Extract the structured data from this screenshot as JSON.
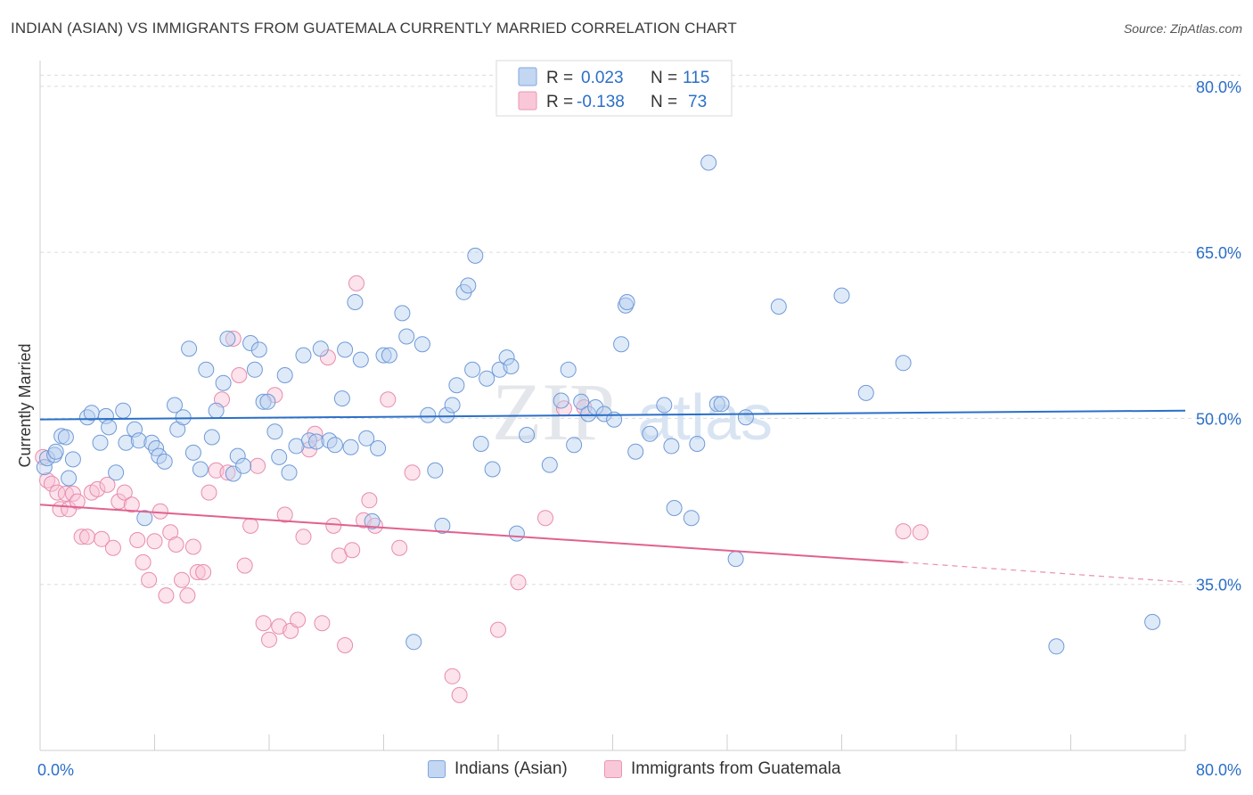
{
  "header": {
    "title": "INDIAN (ASIAN) VS IMMIGRANTS FROM GUATEMALA CURRENTLY MARRIED CORRELATION CHART",
    "source": "Source: ZipAtlas.com"
  },
  "watermark": {
    "zip": "ZIP",
    "atlas": "atlas"
  },
  "legend": {
    "r_label": "R =",
    "n_label": "N =",
    "entries": [
      {
        "r": "0.023",
        "n": "115"
      },
      {
        "r": "-0.138",
        "n": "73"
      }
    ]
  },
  "chart_data": {
    "type": "scatter",
    "title": "INDIAN (ASIAN) VS IMMIGRANTS FROM GUATEMALA CURRENTLY MARRIED CORRELATION CHART",
    "ylabel": "Currently Married",
    "xlabel": "",
    "xlim": [
      0,
      80
    ],
    "ylim": [
      20,
      82
    ],
    "x_tick_labels": [
      "0.0%",
      "80.0%"
    ],
    "y_ticks": [
      35,
      50,
      65,
      80
    ],
    "y_tick_labels": [
      "35.0%",
      "50.0%",
      "65.0%",
      "80.0%"
    ],
    "grid": "horizontal dashed",
    "colors": {
      "blue": "#5b8fd6",
      "pink": "#e87aa0",
      "blue_line": "#2b6fc7",
      "pink_line": "#e0628f"
    },
    "series": [
      {
        "name": "Indians (Asian)",
        "color": "#5b8fd6",
        "trend": {
          "x0": 0,
          "y0": 49.9,
          "x1": 80,
          "y1": 50.7
        },
        "points": [
          [
            0.3,
            45.6
          ],
          [
            0.5,
            46.4
          ],
          [
            1.0,
            46.7
          ],
          [
            1.1,
            47.0
          ],
          [
            1.5,
            48.4
          ],
          [
            1.8,
            48.3
          ],
          [
            2.0,
            44.6
          ],
          [
            2.3,
            46.3
          ],
          [
            3.3,
            50.1
          ],
          [
            3.6,
            50.5
          ],
          [
            4.2,
            47.8
          ],
          [
            4.6,
            50.2
          ],
          [
            4.8,
            49.2
          ],
          [
            5.3,
            45.1
          ],
          [
            5.8,
            50.7
          ],
          [
            6.0,
            47.8
          ],
          [
            6.6,
            49.0
          ],
          [
            6.9,
            48.0
          ],
          [
            7.3,
            41.0
          ],
          [
            7.8,
            47.8
          ],
          [
            8.1,
            47.3
          ],
          [
            8.3,
            46.6
          ],
          [
            8.7,
            46.1
          ],
          [
            9.4,
            51.2
          ],
          [
            9.6,
            49.0
          ],
          [
            10.0,
            50.1
          ],
          [
            10.4,
            56.3
          ],
          [
            10.7,
            46.9
          ],
          [
            11.2,
            45.4
          ],
          [
            11.6,
            54.4
          ],
          [
            12.0,
            48.3
          ],
          [
            12.3,
            50.7
          ],
          [
            12.8,
            53.2
          ],
          [
            13.1,
            57.2
          ],
          [
            13.5,
            45.0
          ],
          [
            13.8,
            46.6
          ],
          [
            14.2,
            45.7
          ],
          [
            14.7,
            56.8
          ],
          [
            15.0,
            54.4
          ],
          [
            15.3,
            56.2
          ],
          [
            15.6,
            51.5
          ],
          [
            15.9,
            51.5
          ],
          [
            16.4,
            48.8
          ],
          [
            16.7,
            46.5
          ],
          [
            17.1,
            53.9
          ],
          [
            17.4,
            45.1
          ],
          [
            17.9,
            47.5
          ],
          [
            18.4,
            55.7
          ],
          [
            18.8,
            48.0
          ],
          [
            19.3,
            47.9
          ],
          [
            19.6,
            56.3
          ],
          [
            20.2,
            48.0
          ],
          [
            20.6,
            47.6
          ],
          [
            21.1,
            51.8
          ],
          [
            21.3,
            56.2
          ],
          [
            21.7,
            47.4
          ],
          [
            22.0,
            60.5
          ],
          [
            22.4,
            55.3
          ],
          [
            22.8,
            48.2
          ],
          [
            23.2,
            40.7
          ],
          [
            23.6,
            47.3
          ],
          [
            24.0,
            55.7
          ],
          [
            24.4,
            55.7
          ],
          [
            25.3,
            59.5
          ],
          [
            25.6,
            57.4
          ],
          [
            26.1,
            29.8
          ],
          [
            26.7,
            56.7
          ],
          [
            27.1,
            50.3
          ],
          [
            27.6,
            45.3
          ],
          [
            28.1,
            40.3
          ],
          [
            28.4,
            50.3
          ],
          [
            28.8,
            51.2
          ],
          [
            29.1,
            53.0
          ],
          [
            29.6,
            61.4
          ],
          [
            29.9,
            62.0
          ],
          [
            30.2,
            54.4
          ],
          [
            30.4,
            64.7
          ],
          [
            30.8,
            47.7
          ],
          [
            31.2,
            53.6
          ],
          [
            31.6,
            45.4
          ],
          [
            32.1,
            54.4
          ],
          [
            32.6,
            55.5
          ],
          [
            32.9,
            54.7
          ],
          [
            33.3,
            39.6
          ],
          [
            34.0,
            48.5
          ],
          [
            35.6,
            45.8
          ],
          [
            36.4,
            51.6
          ],
          [
            36.9,
            54.4
          ],
          [
            37.3,
            47.6
          ],
          [
            37.8,
            51.5
          ],
          [
            38.3,
            50.4
          ],
          [
            38.8,
            51.0
          ],
          [
            39.4,
            50.4
          ],
          [
            40.1,
            49.9
          ],
          [
            40.6,
            56.7
          ],
          [
            40.9,
            60.2
          ],
          [
            41.0,
            60.5
          ],
          [
            41.6,
            47.0
          ],
          [
            42.6,
            48.6
          ],
          [
            43.6,
            51.2
          ],
          [
            44.1,
            47.5
          ],
          [
            44.3,
            41.9
          ],
          [
            45.5,
            41.0
          ],
          [
            45.9,
            47.7
          ],
          [
            46.7,
            73.1
          ],
          [
            47.3,
            51.3
          ],
          [
            47.6,
            51.3
          ],
          [
            48.6,
            37.3
          ],
          [
            49.3,
            50.1
          ],
          [
            51.6,
            60.1
          ],
          [
            56.0,
            61.1
          ],
          [
            57.7,
            52.3
          ],
          [
            60.3,
            55.0
          ],
          [
            71.0,
            29.4
          ],
          [
            77.7,
            31.6
          ]
        ]
      },
      {
        "name": "Immigrants from Guatemala",
        "color": "#e87aa0",
        "trend": {
          "x0": 0,
          "y0": 42.2,
          "x1": 60.3,
          "y1": 37.0
        },
        "trend_dashed_to": {
          "x": 80,
          "y": 35.2
        },
        "points": [
          [
            0.2,
            46.5
          ],
          [
            0.5,
            44.4
          ],
          [
            0.8,
            44.1
          ],
          [
            1.2,
            43.3
          ],
          [
            1.4,
            41.8
          ],
          [
            1.8,
            43.2
          ],
          [
            2.0,
            41.8
          ],
          [
            2.3,
            43.2
          ],
          [
            2.6,
            42.5
          ],
          [
            2.9,
            39.3
          ],
          [
            3.3,
            39.3
          ],
          [
            3.6,
            43.3
          ],
          [
            4.0,
            43.6
          ],
          [
            4.3,
            39.1
          ],
          [
            4.7,
            44.0
          ],
          [
            5.1,
            38.3
          ],
          [
            5.5,
            42.5
          ],
          [
            5.9,
            43.3
          ],
          [
            6.4,
            42.2
          ],
          [
            6.8,
            39.0
          ],
          [
            7.2,
            37.0
          ],
          [
            7.6,
            35.4
          ],
          [
            8.0,
            38.9
          ],
          [
            8.4,
            41.6
          ],
          [
            8.8,
            34.0
          ],
          [
            9.1,
            39.7
          ],
          [
            9.5,
            38.6
          ],
          [
            9.9,
            35.4
          ],
          [
            10.3,
            34.0
          ],
          [
            10.7,
            38.4
          ],
          [
            11.0,
            36.1
          ],
          [
            11.4,
            36.1
          ],
          [
            11.8,
            43.3
          ],
          [
            12.3,
            45.3
          ],
          [
            12.7,
            51.7
          ],
          [
            13.1,
            45.1
          ],
          [
            13.5,
            57.2
          ],
          [
            13.9,
            53.9
          ],
          [
            14.3,
            36.7
          ],
          [
            14.7,
            40.3
          ],
          [
            15.2,
            45.7
          ],
          [
            15.6,
            31.5
          ],
          [
            16.0,
            30.0
          ],
          [
            16.4,
            52.1
          ],
          [
            16.7,
            31.2
          ],
          [
            17.1,
            41.3
          ],
          [
            17.5,
            30.8
          ],
          [
            18.0,
            31.8
          ],
          [
            18.4,
            39.3
          ],
          [
            18.8,
            47.2
          ],
          [
            19.2,
            48.6
          ],
          [
            19.7,
            31.5
          ],
          [
            20.1,
            55.5
          ],
          [
            20.5,
            40.3
          ],
          [
            20.9,
            37.6
          ],
          [
            21.3,
            29.5
          ],
          [
            21.8,
            38.1
          ],
          [
            22.1,
            62.2
          ],
          [
            22.6,
            40.8
          ],
          [
            23.0,
            42.6
          ],
          [
            23.4,
            40.3
          ],
          [
            24.3,
            51.7
          ],
          [
            25.1,
            38.3
          ],
          [
            26.0,
            45.1
          ],
          [
            28.8,
            26.7
          ],
          [
            29.3,
            25.0
          ],
          [
            32.0,
            30.9
          ],
          [
            33.4,
            35.2
          ],
          [
            35.3,
            41.0
          ],
          [
            36.6,
            50.9
          ],
          [
            38.0,
            51.0
          ],
          [
            60.3,
            39.8
          ],
          [
            61.5,
            39.7
          ]
        ]
      }
    ]
  }
}
